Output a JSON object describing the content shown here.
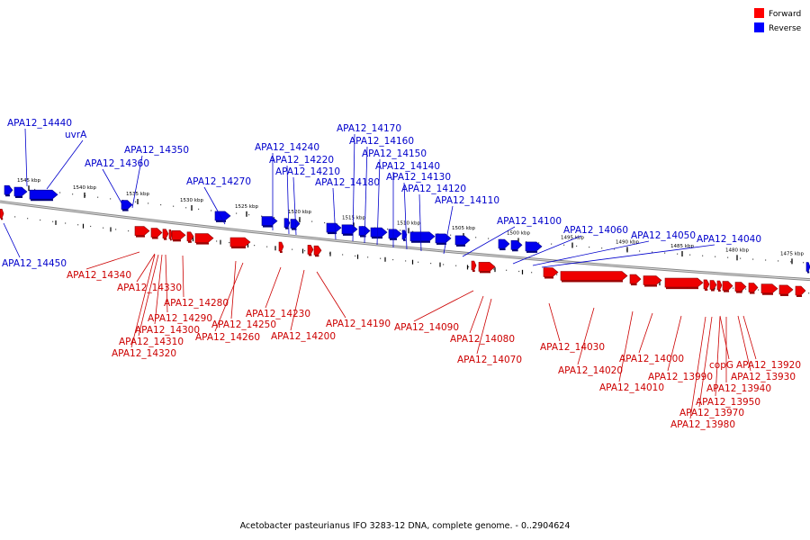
{
  "legend": [
    {
      "label": "Forward",
      "color": "#ff0000"
    },
    {
      "label": "Reverse",
      "color": "#0000ff"
    }
  ],
  "caption": "Acetobacter pasteurianus IFO 3283-12 DNA, complete genome. - 0..2904624",
  "colors": {
    "forward": "#ee0000",
    "reverse": "#0000ee",
    "forward_label": "#cc0000",
    "reverse_label": "#0000cc"
  },
  "ticks": [
    "1545 kbp",
    "1540 kbp",
    "1535 kbp",
    "1530 kbp",
    "1525 kbp",
    "1520 kbp",
    "1515 kbp",
    "1510 kbp",
    "1505 kbp",
    "1500 kbp",
    "1495 kbp",
    "1490 kbp",
    "1485 kbp",
    "1480 kbp",
    "1475 kbp"
  ],
  "reverse_genes": [
    "APA12_14440",
    "uvrA",
    "APA12_14360",
    "APA12_14350",
    "APA12_14270",
    "APA12_14240",
    "APA12_14220",
    "APA12_14210",
    "APA12_14180",
    "APA12_14170",
    "APA12_14160",
    "APA12_14150",
    "APA12_14140",
    "APA12_14130",
    "APA12_14120",
    "APA12_14110",
    "APA12_14100",
    "APA12_14060",
    "APA12_14050",
    "APA12_14040",
    "APA12_14450"
  ],
  "forward_genes": [
    "APA12_14340",
    "APA12_14330",
    "APA12_14280",
    "APA12_14290",
    "APA12_14300",
    "APA12_14310",
    "APA12_14320",
    "APA12_14250",
    "APA12_14260",
    "APA12_14230",
    "APA12_14200",
    "APA12_14190",
    "APA12_14090",
    "APA12_14080",
    "APA12_14070",
    "APA12_14030",
    "APA12_14020",
    "APA12_14010",
    "APA12_14000",
    "APA12_13990",
    "copG",
    "APA12_13920",
    "APA12_13930",
    "APA12_13940",
    "APA12_13950",
    "APA12_13970",
    "APA12_13980"
  ]
}
